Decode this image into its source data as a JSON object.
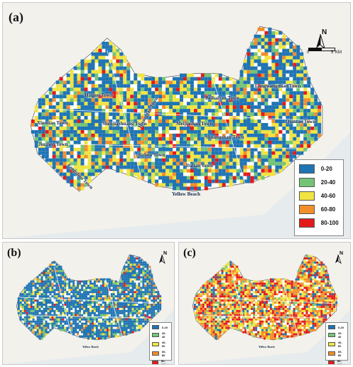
{
  "figure": {
    "panels": [
      {
        "label": "(a)"
      },
      {
        "label": "(b)"
      },
      {
        "label": "(c)"
      }
    ],
    "north_label": "N",
    "scale": {
      "zero": "0",
      "five": "5",
      "unit": "KM"
    },
    "legend": {
      "classes": [
        {
          "label": "0-20",
          "color": "#1f74b4"
        },
        {
          "label": "20-40",
          "color": "#74c476"
        },
        {
          "label": "40-60",
          "color": "#f0e442"
        },
        {
          "label": "60-80",
          "color": "#f28e2b"
        },
        {
          "label": "80-100",
          "color": "#e31a1c"
        }
      ]
    },
    "towns": {
      "haigou": "Haigou Town",
      "langwangmiao": "Langwangmiao Town",
      "shenjiazhuang": "Shenjiazhuang Town",
      "xinmiao": "Xinmiao Town",
      "beihaiyan": "Beihaiyan Town",
      "meijiashan": "Meijiashan Town",
      "jiuzhen": "Jiuzhen Town",
      "qiantao": "Qiantao Town",
      "shuangshan": "Shuangshan Town",
      "sizhou": "Sizhou Town",
      "dalian": "Dalian Town",
      "huanggan": "Huanggan Town",
      "fangzhou": "Fangzhou Town"
    },
    "yellow_beach": "Yellow Beach",
    "panel_b_share": {
      "0-20": 0.7,
      "20-40": 0.12,
      "40-60": 0.1,
      "60-80": 0.05,
      "80-100": 0.03
    },
    "panel_c_share": {
      "0-20": 0.12,
      "20-40": 0.08,
      "40-60": 0.25,
      "60-80": 0.3,
      "80-100": 0.25
    }
  }
}
